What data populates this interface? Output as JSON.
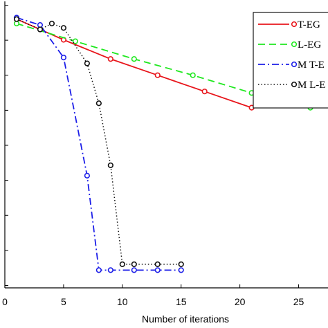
{
  "chart_data": {
    "type": "line",
    "title": "",
    "xlabel": "Number of iterations",
    "ylabel": "",
    "xlim": [
      0,
      27.5
    ],
    "ylim": [
      -18.8,
      0.6
    ],
    "x_ticks": [
      0,
      5,
      10,
      15,
      20,
      25
    ],
    "y_tick_count": 9,
    "grid": false,
    "legend_position": "top-right",
    "series": [
      {
        "name": "T-EG",
        "color": "#e8151b",
        "line_style": "solid",
        "x": [
          1,
          5,
          9,
          13,
          17,
          21
        ],
        "y": [
          -0.6,
          -2.0,
          -3.3,
          -4.4,
          -5.5,
          -6.6
        ]
      },
      {
        "name": "L-EG",
        "color": "#1ee81e",
        "line_style": "dashed",
        "x": [
          1,
          6,
          11,
          16,
          21,
          26
        ],
        "y": [
          -0.9,
          -2.1,
          -3.3,
          -4.4,
          -5.6,
          -6.6
        ]
      },
      {
        "name": "M T-E",
        "color": "#1c1ee8",
        "line_style": "dashdot",
        "x": [
          1,
          3,
          5,
          7,
          8,
          9,
          11,
          13,
          15
        ],
        "y": [
          -0.5,
          -1.0,
          -3.2,
          -11.2,
          -17.6,
          -17.6,
          -17.6,
          -17.6,
          -17.6
        ]
      },
      {
        "name": "M L-E",
        "color": "#111111",
        "line_style": "dotted",
        "x": [
          1,
          3,
          4,
          5,
          7,
          8,
          9,
          10,
          11,
          13,
          15
        ],
        "y": [
          -0.6,
          -1.3,
          -0.9,
          -1.2,
          -3.6,
          -6.3,
          -10.5,
          -17.2,
          -17.2,
          -17.2,
          -17.2
        ]
      }
    ]
  }
}
